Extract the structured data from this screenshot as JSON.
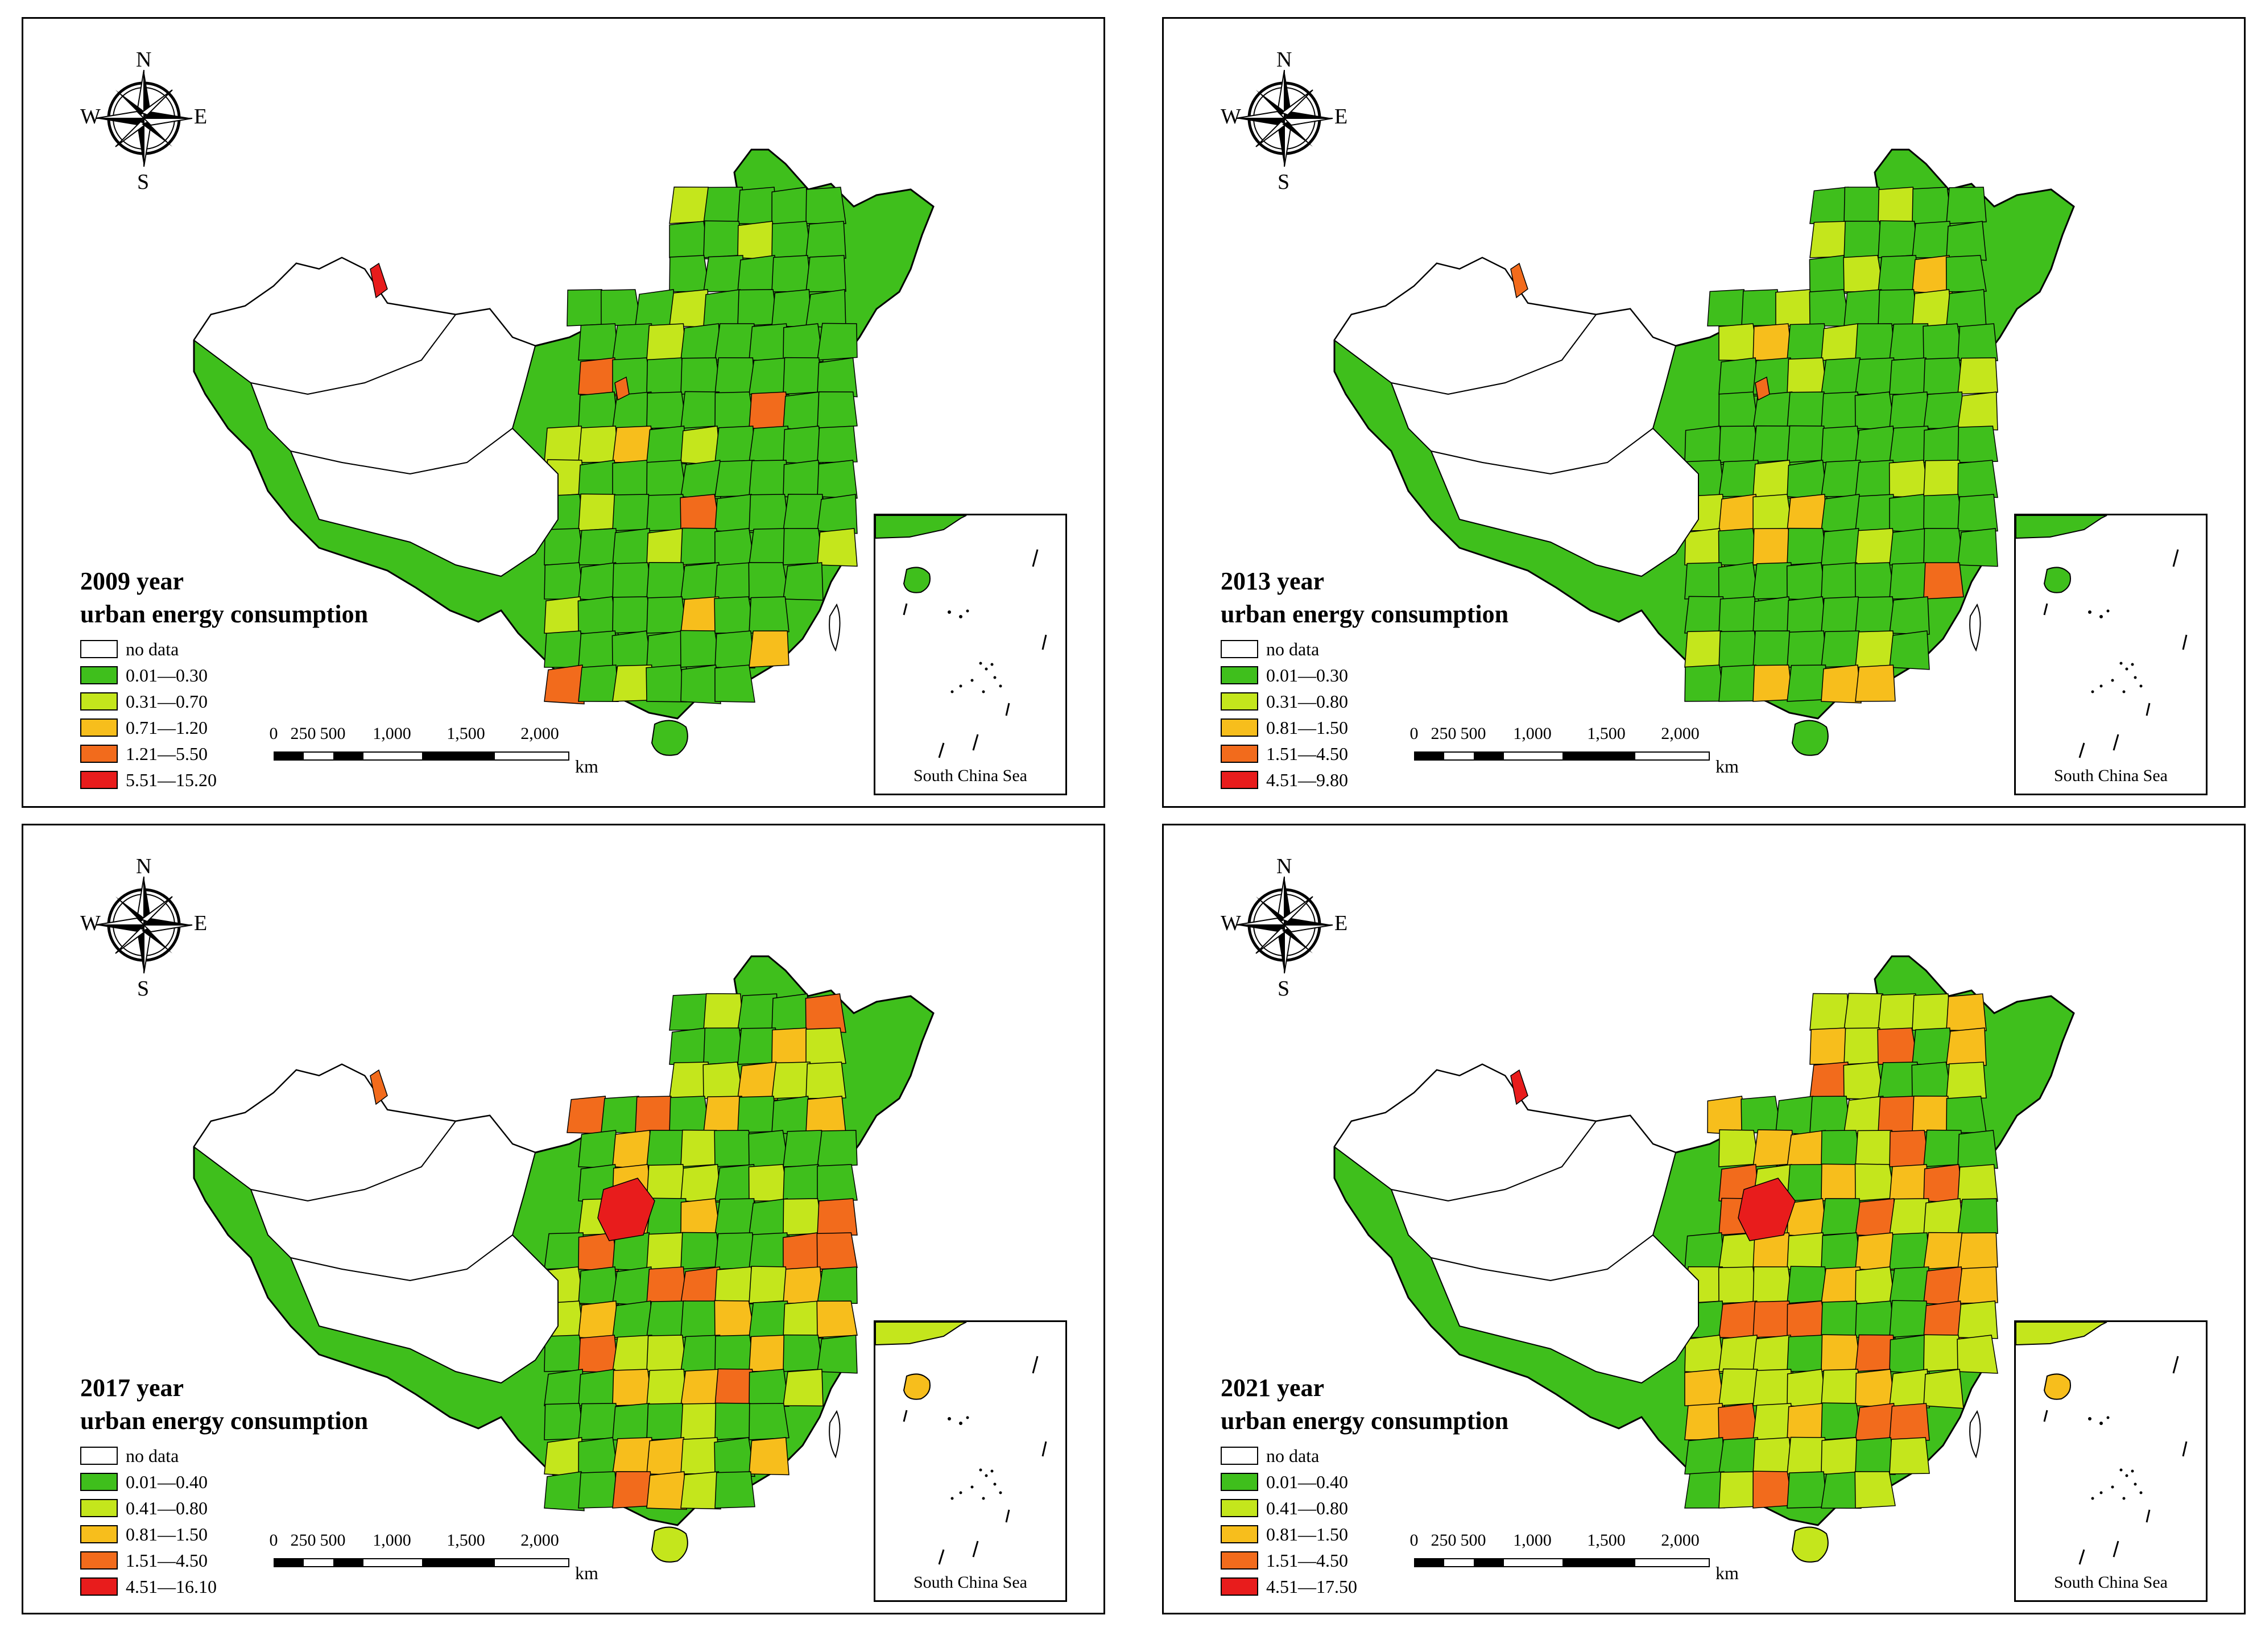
{
  "compass": {
    "n": "N",
    "s": "S",
    "e": "E",
    "w": "W"
  },
  "scale": {
    "ticks": [
      "0",
      "250",
      "500",
      "1,000",
      "1,500",
      "2,000"
    ],
    "unit": "km"
  },
  "inset_label": "South China Sea",
  "no_data_color": "#ffffff",
  "palette": [
    "#ffffff",
    "#3fbf1c",
    "#c4e61c",
    "#f7be1c",
    "#f26b1c",
    "#e81c1c"
  ],
  "panels": [
    {
      "title_line1": "2009 year",
      "title_line2": "urban energy consumption",
      "legend": [
        "no data",
        "0.01—0.30",
        "0.31—0.70",
        "0.71—1.20",
        "1.21—5.50",
        "5.51—15.20"
      ]
    },
    {
      "title_line1": "2013 year",
      "title_line2": "urban energy consumption",
      "legend": [
        "no data",
        "0.01—0.30",
        "0.31—0.80",
        "0.81—1.50",
        "1.51—4.50",
        "4.51—9.80"
      ]
    },
    {
      "title_line1": "2017 year",
      "title_line2": "urban energy consumption",
      "legend": [
        "no data",
        "0.01—0.40",
        "0.41—0.80",
        "0.81—1.50",
        "1.51—4.50",
        "4.51—16.10"
      ]
    },
    {
      "title_line1": "2021 year",
      "title_line2": "urban energy consumption",
      "legend": [
        "no data",
        "0.01—0.40",
        "0.41—0.80",
        "0.81—1.50",
        "1.51—4.50",
        "4.51—17.50"
      ]
    }
  ]
}
